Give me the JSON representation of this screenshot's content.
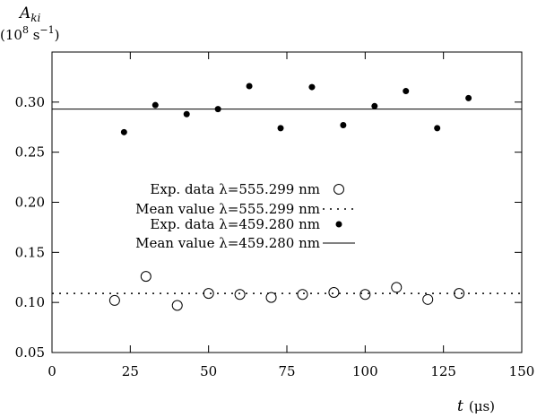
{
  "chart_data": {
    "type": "scatter",
    "title": "",
    "ylabel": "A_ki",
    "ylabel_symbol": "A",
    "ylabel_subscript": "ki",
    "ylabel_unit_prefix": "(10",
    "ylabel_unit_exp": "8",
    "ylabel_unit_mid": " s",
    "ylabel_unit_exp2": "−1",
    "ylabel_unit_suffix": ")",
    "xlabel_symbol": "t",
    "xlabel_unit": "(μs)",
    "xlim": [
      0,
      150
    ],
    "ylim": [
      0.05,
      0.35
    ],
    "xticks": [
      0,
      25,
      50,
      75,
      100,
      125,
      150
    ],
    "yticks": [
      0.05,
      0.1,
      0.15,
      0.2,
      0.25,
      0.3
    ],
    "grid": false,
    "legend_position": "center-left",
    "series": [
      {
        "name": "Exp. data λ=555.299 nm",
        "kind": "points",
        "marker": "open-circle",
        "x": [
          20,
          30,
          40,
          50,
          60,
          70,
          80,
          90,
          100,
          110,
          120,
          130
        ],
        "y": [
          0.102,
          0.126,
          0.097,
          0.109,
          0.108,
          0.105,
          0.108,
          0.11,
          0.108,
          0.115,
          0.103,
          0.109
        ]
      },
      {
        "name": "Mean value λ=555.299 nm",
        "kind": "hline",
        "style": "dotted",
        "y": 0.109
      },
      {
        "name": "Exp. data λ=459.280 nm",
        "kind": "points",
        "marker": "filled-circle",
        "x": [
          23,
          33,
          43,
          53,
          63,
          73,
          83,
          93,
          103,
          113,
          123,
          133
        ],
        "y": [
          0.27,
          0.297,
          0.288,
          0.293,
          0.316,
          0.274,
          0.315,
          0.277,
          0.296,
          0.311,
          0.274,
          0.304
        ]
      },
      {
        "name": "Mean value λ=459.280 nm",
        "kind": "hline",
        "style": "solid",
        "y": 0.293
      }
    ]
  }
}
